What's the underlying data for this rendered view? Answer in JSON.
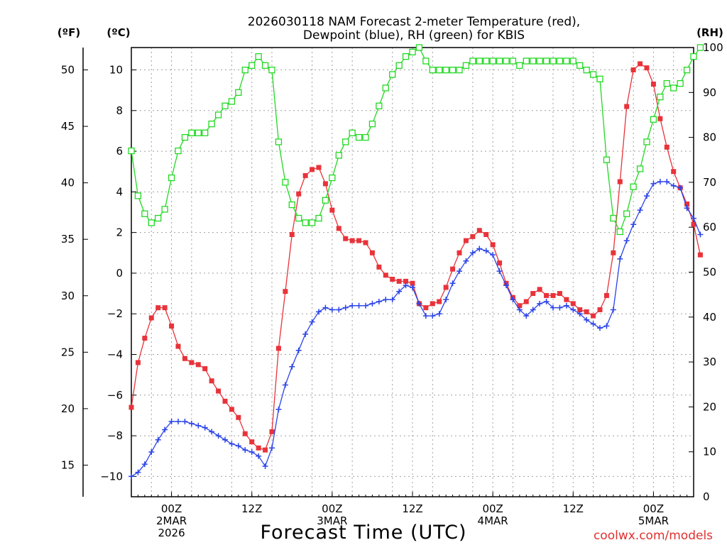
{
  "chart_data": {
    "type": "line",
    "title_line1": "2026030118 NAM Forecast 2-meter Temperature (red),",
    "title_line2": "Dewpoint (blue), RH (green) for KBIS",
    "xlabel": "Forecast Time (UTC)",
    "credit": "coolwx.com/models",
    "unit_f": "(ºF)",
    "unit_c": "(ºC)",
    "unit_rh": "(RH)",
    "x_start_hour": 0,
    "x_end_hour": 84,
    "x_ticks": [
      {
        "hour": 6,
        "lines": [
          "00Z",
          "2MAR",
          "2026"
        ]
      },
      {
        "hour": 18,
        "lines": [
          "12Z"
        ]
      },
      {
        "hour": 30,
        "lines": [
          "00Z",
          "3MAR"
        ]
      },
      {
        "hour": 42,
        "lines": [
          "12Z"
        ]
      },
      {
        "hour": 54,
        "lines": [
          "00Z",
          "4MAR"
        ]
      },
      {
        "hour": 66,
        "lines": [
          "12Z"
        ]
      },
      {
        "hour": 78,
        "lines": [
          "00Z",
          "5MAR"
        ]
      }
    ],
    "y_c_range": [
      -11,
      11.1
    ],
    "y_c_ticks": [
      -10,
      -8,
      -6,
      -4,
      -2,
      0,
      2,
      4,
      6,
      8,
      10
    ],
    "y_c_tick_labels": [
      "−10",
      "−8",
      "−6",
      "−4",
      "−2",
      "0",
      "2",
      "4",
      "6",
      "8",
      "10"
    ],
    "y_f_ticks": [
      15,
      20,
      25,
      30,
      35,
      40,
      45,
      50
    ],
    "y_rh_range": [
      0,
      100
    ],
    "y_rh_ticks": [
      0,
      10,
      20,
      30,
      40,
      50,
      60,
      70,
      80,
      90,
      100
    ],
    "series": [
      {
        "name": "Temperature",
        "color": "#e8333a",
        "marker": "square-filled",
        "axis": "c",
        "values": [
          -6.6,
          -4.4,
          -3.2,
          -2.2,
          -1.7,
          -1.7,
          -2.6,
          -3.6,
          -4.2,
          -4.4,
          -4.5,
          -4.7,
          -5.3,
          -5.8,
          -6.3,
          -6.7,
          -7.1,
          -7.9,
          -8.3,
          -8.6,
          -8.7,
          -7.8,
          -3.7,
          -0.9,
          1.9,
          3.9,
          4.8,
          5.1,
          5.2,
          4.4,
          3.1,
          2.2,
          1.7,
          1.6,
          1.6,
          1.5,
          1.0,
          0.3,
          -0.1,
          -0.3,
          -0.4,
          -0.4,
          -0.5,
          -1.5,
          -1.7,
          -1.5,
          -1.4,
          -0.7,
          0.2,
          1.0,
          1.6,
          1.8,
          2.1,
          1.9,
          1.4,
          0.5,
          -0.5,
          -1.2,
          -1.6,
          -1.4,
          -1.0,
          -0.8,
          -1.1,
          -1.1,
          -1.0,
          -1.3,
          -1.5,
          -1.8,
          -1.9,
          -2.1,
          -1.8,
          -1.1,
          1.0,
          4.5,
          8.2,
          10.0,
          10.3,
          10.1,
          9.3,
          7.6,
          6.2,
          5.0,
          4.2,
          3.4,
          2.4,
          0.9
        ]
      },
      {
        "name": "Dewpoint",
        "color": "#2a43e8",
        "marker": "plus",
        "axis": "c",
        "values": [
          -10.0,
          -9.8,
          -9.4,
          -8.8,
          -8.2,
          -7.7,
          -7.3,
          -7.3,
          -7.3,
          -7.4,
          -7.5,
          -7.6,
          -7.8,
          -8.0,
          -8.2,
          -8.4,
          -8.5,
          -8.7,
          -8.8,
          -9.0,
          -9.5,
          -8.6,
          -6.7,
          -5.5,
          -4.6,
          -3.8,
          -3.0,
          -2.4,
          -1.9,
          -1.7,
          -1.8,
          -1.8,
          -1.7,
          -1.6,
          -1.6,
          -1.6,
          -1.5,
          -1.4,
          -1.3,
          -1.3,
          -0.9,
          -0.6,
          -0.7,
          -1.5,
          -2.1,
          -2.1,
          -2.0,
          -1.3,
          -0.5,
          0.1,
          0.6,
          1.0,
          1.2,
          1.1,
          0.9,
          0.1,
          -0.6,
          -1.3,
          -1.8,
          -2.1,
          -1.8,
          -1.5,
          -1.4,
          -1.7,
          -1.7,
          -1.6,
          -1.8,
          -2.0,
          -2.3,
          -2.5,
          -2.7,
          -2.6,
          -1.8,
          0.7,
          1.6,
          2.4,
          3.1,
          3.8,
          4.4,
          4.5,
          4.5,
          4.3,
          4.2,
          3.2,
          2.7,
          1.9
        ]
      },
      {
        "name": "RH",
        "color": "#22d822",
        "marker": "square-open",
        "axis": "rh",
        "values": [
          77,
          67,
          63,
          61,
          62,
          64,
          71,
          77,
          80,
          81,
          81,
          81,
          83,
          85,
          87,
          88,
          90,
          95,
          96,
          98,
          96,
          95,
          79,
          70,
          65,
          62,
          61,
          61,
          62,
          66,
          71,
          76,
          79,
          81,
          80,
          80,
          83,
          87,
          91,
          94,
          96,
          98,
          99,
          100,
          97,
          95,
          95,
          95,
          95,
          95,
          96,
          97,
          97,
          97,
          97,
          97,
          97,
          97,
          96,
          97,
          97,
          97,
          97,
          97,
          97,
          97,
          97,
          96,
          95,
          94,
          93,
          75,
          62,
          59,
          63,
          69,
          73,
          79,
          84,
          89,
          92,
          91,
          92,
          95,
          98,
          100
        ]
      }
    ]
  }
}
